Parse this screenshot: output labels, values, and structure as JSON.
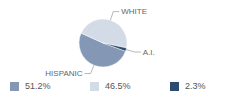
{
  "chart_data": {
    "type": "pie",
    "categories": [
      "HISPANIC",
      "WHITE",
      "A.I."
    ],
    "values": [
      51.2,
      46.5,
      2.3
    ],
    "value_labels": [
      "51.2%",
      "46.5%",
      "2.3%"
    ],
    "colors": [
      "#8497b4",
      "#d3dbe6",
      "#2e4c70"
    ],
    "legend": "bottom"
  }
}
